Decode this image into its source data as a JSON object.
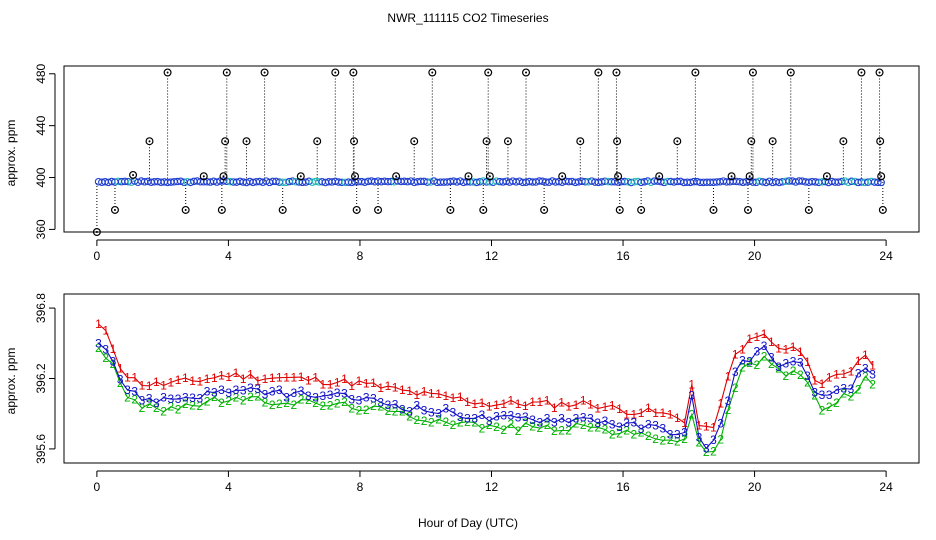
{
  "chart_data": {
    "title": "NWR_111115  CO2 Timeseries",
    "xlabel": "Hour of Day (UTC)",
    "x_ticks": [
      0,
      4,
      8,
      12,
      16,
      20,
      24
    ],
    "panels": [
      {
        "id": "top",
        "type": "scatter",
        "ylabel": "approx. ppm",
        "xlim": [
          -1,
          25
        ],
        "ylim": [
          358,
          486
        ],
        "y_ticks": [
          360,
          400,
          440,
          480
        ],
        "baseline": 396.8,
        "series_colors": {
          "base": "#1f3fd0",
          "accent": "#22b8b8",
          "outlier": "#000000",
          "drop": "#000000"
        },
        "outliers": [
          {
            "x": 0.0,
            "y": 358
          },
          {
            "x": 0.55,
            "y": 375
          },
          {
            "x": 1.1,
            "y": 402
          },
          {
            "x": 1.6,
            "y": 428
          },
          {
            "x": 2.15,
            "y": 481
          },
          {
            "x": 2.7,
            "y": 375
          },
          {
            "x": 3.25,
            "y": 401
          },
          {
            "x": 3.8,
            "y": 375
          },
          {
            "x": 3.85,
            "y": 401
          },
          {
            "x": 3.9,
            "y": 428
          },
          {
            "x": 3.95,
            "y": 481
          },
          {
            "x": 4.55,
            "y": 428
          },
          {
            "x": 5.1,
            "y": 481
          },
          {
            "x": 5.65,
            "y": 375
          },
          {
            "x": 6.2,
            "y": 401
          },
          {
            "x": 6.7,
            "y": 428
          },
          {
            "x": 7.25,
            "y": 481
          },
          {
            "x": 7.8,
            "y": 481
          },
          {
            "x": 7.82,
            "y": 428
          },
          {
            "x": 7.85,
            "y": 401
          },
          {
            "x": 7.9,
            "y": 375
          },
          {
            "x": 8.55,
            "y": 375
          },
          {
            "x": 9.1,
            "y": 401
          },
          {
            "x": 9.65,
            "y": 428
          },
          {
            "x": 10.2,
            "y": 481
          },
          {
            "x": 10.75,
            "y": 375
          },
          {
            "x": 11.3,
            "y": 401
          },
          {
            "x": 11.75,
            "y": 375
          },
          {
            "x": 11.85,
            "y": 428
          },
          {
            "x": 11.9,
            "y": 481
          },
          {
            "x": 11.95,
            "y": 401
          },
          {
            "x": 12.5,
            "y": 428
          },
          {
            "x": 13.05,
            "y": 481
          },
          {
            "x": 13.6,
            "y": 375
          },
          {
            "x": 14.15,
            "y": 401
          },
          {
            "x": 14.7,
            "y": 428
          },
          {
            "x": 15.25,
            "y": 481
          },
          {
            "x": 15.8,
            "y": 481
          },
          {
            "x": 15.82,
            "y": 428
          },
          {
            "x": 15.85,
            "y": 401
          },
          {
            "x": 15.9,
            "y": 375
          },
          {
            "x": 16.55,
            "y": 375
          },
          {
            "x": 17.1,
            "y": 401
          },
          {
            "x": 17.65,
            "y": 428
          },
          {
            "x": 18.2,
            "y": 481
          },
          {
            "x": 18.75,
            "y": 375
          },
          {
            "x": 19.3,
            "y": 401
          },
          {
            "x": 19.8,
            "y": 375
          },
          {
            "x": 19.85,
            "y": 401
          },
          {
            "x": 19.9,
            "y": 428
          },
          {
            "x": 19.95,
            "y": 481
          },
          {
            "x": 20.55,
            "y": 428
          },
          {
            "x": 21.1,
            "y": 481
          },
          {
            "x": 21.65,
            "y": 375
          },
          {
            "x": 22.2,
            "y": 401
          },
          {
            "x": 22.7,
            "y": 428
          },
          {
            "x": 23.25,
            "y": 481
          },
          {
            "x": 23.8,
            "y": 481
          },
          {
            "x": 23.82,
            "y": 428
          },
          {
            "x": 23.85,
            "y": 401
          },
          {
            "x": 23.9,
            "y": 375
          }
        ]
      },
      {
        "id": "bottom",
        "type": "line",
        "ylabel": "approx. ppm",
        "xlim": [
          -1,
          25
        ],
        "ylim": [
          395.48,
          396.92
        ],
        "y_ticks": [
          395.6,
          396.2,
          396.8
        ],
        "y_tick_labels": [
          "395.6",
          "396.2",
          "396.8"
        ],
        "series": [
          {
            "name": "1",
            "color": "#e00000",
            "offset": 0.13,
            "lag": 0.03
          },
          {
            "name": "2",
            "color": "#00b000",
            "offset": -0.07,
            "lag": -0.03
          },
          {
            "name": "3",
            "color": "#1010c8",
            "offset": 0.0,
            "lag": 0.0
          }
        ],
        "profile": [
          {
            "x": 0.0,
            "y": 396.55
          },
          {
            "x": 0.3,
            "y": 396.45
          },
          {
            "x": 0.5,
            "y": 396.35
          },
          {
            "x": 0.7,
            "y": 396.2
          },
          {
            "x": 1.0,
            "y": 396.08
          },
          {
            "x": 1.5,
            "y": 396.02
          },
          {
            "x": 2.0,
            "y": 396.02
          },
          {
            "x": 3.0,
            "y": 396.05
          },
          {
            "x": 4.0,
            "y": 396.1
          },
          {
            "x": 5.0,
            "y": 396.08
          },
          {
            "x": 6.0,
            "y": 396.07
          },
          {
            "x": 7.0,
            "y": 396.05
          },
          {
            "x": 8.0,
            "y": 396.03
          },
          {
            "x": 9.0,
            "y": 395.98
          },
          {
            "x": 10.0,
            "y": 395.93
          },
          {
            "x": 11.0,
            "y": 395.9
          },
          {
            "x": 12.0,
            "y": 395.85
          },
          {
            "x": 13.0,
            "y": 395.86
          },
          {
            "x": 14.0,
            "y": 395.85
          },
          {
            "x": 15.0,
            "y": 395.86
          },
          {
            "x": 16.0,
            "y": 395.8
          },
          {
            "x": 17.0,
            "y": 395.78
          },
          {
            "x": 17.5,
            "y": 395.75
          },
          {
            "x": 17.9,
            "y": 395.72
          },
          {
            "x": 18.1,
            "y": 396.05
          },
          {
            "x": 18.3,
            "y": 395.68
          },
          {
            "x": 18.6,
            "y": 395.62
          },
          {
            "x": 18.9,
            "y": 395.72
          },
          {
            "x": 19.2,
            "y": 396.05
          },
          {
            "x": 19.5,
            "y": 396.32
          },
          {
            "x": 20.0,
            "y": 396.4
          },
          {
            "x": 20.3,
            "y": 396.45
          },
          {
            "x": 20.6,
            "y": 396.35
          },
          {
            "x": 21.0,
            "y": 396.3
          },
          {
            "x": 21.3,
            "y": 396.35
          },
          {
            "x": 21.6,
            "y": 396.2
          },
          {
            "x": 22.0,
            "y": 396.02
          },
          {
            "x": 22.5,
            "y": 396.1
          },
          {
            "x": 23.0,
            "y": 396.15
          },
          {
            "x": 23.3,
            "y": 396.28
          },
          {
            "x": 23.6,
            "y": 396.2
          },
          {
            "x": 23.8,
            "y": 396.2
          }
        ]
      }
    ]
  }
}
